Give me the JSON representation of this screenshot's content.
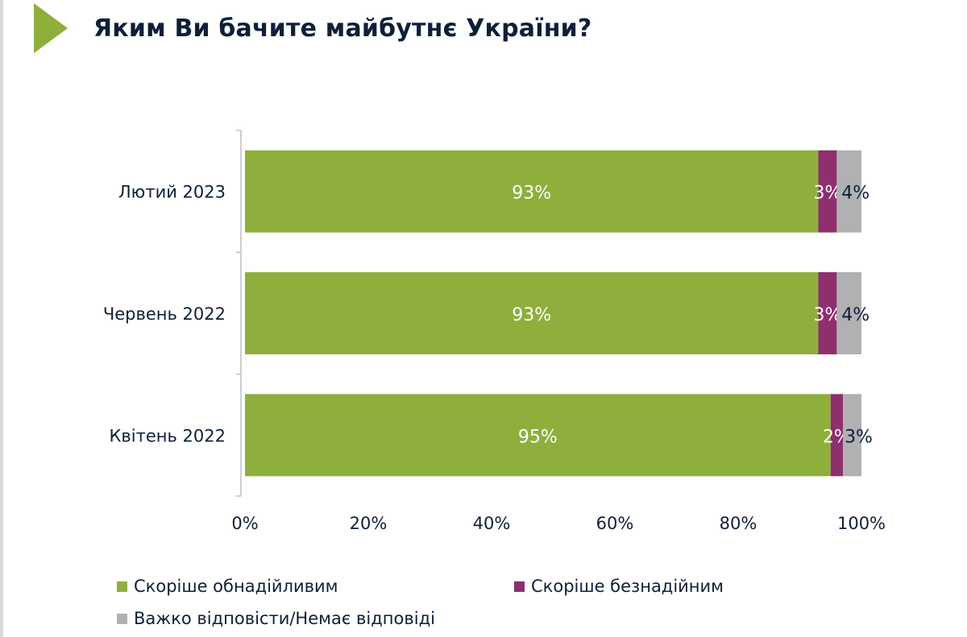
{
  "title": "Яким Ви бачите майбутнє України?",
  "chart_data": {
    "type": "bar",
    "orientation": "horizontal",
    "stacked": true,
    "title": "Яким Ви бачите майбутнє України?",
    "categories": [
      "Лютий 2023",
      "Червень 2022",
      "Квітень 2022"
    ],
    "series": [
      {
        "name": "Скоріше обнадійливим",
        "color": "#8faf3c",
        "label_color": "#ffffff",
        "values": [
          93,
          93,
          95
        ]
      },
      {
        "name": "Скоріше безнадійним",
        "color": "#8e2f6e",
        "label_color": "#ffffff",
        "values": [
          3,
          3,
          2
        ]
      },
      {
        "name": "Важко відповісти/Немає відповіді",
        "color": "#b1b1b3",
        "label_color": "#0f1f3a",
        "values": [
          4,
          4,
          3
        ]
      }
    ],
    "xticks": [
      "0%",
      "20%",
      "40%",
      "60%",
      "80%",
      "100%"
    ],
    "xlim": [
      0,
      100
    ],
    "xlabel": "",
    "ylabel": "",
    "grid": false,
    "legend_position": "bottom"
  }
}
